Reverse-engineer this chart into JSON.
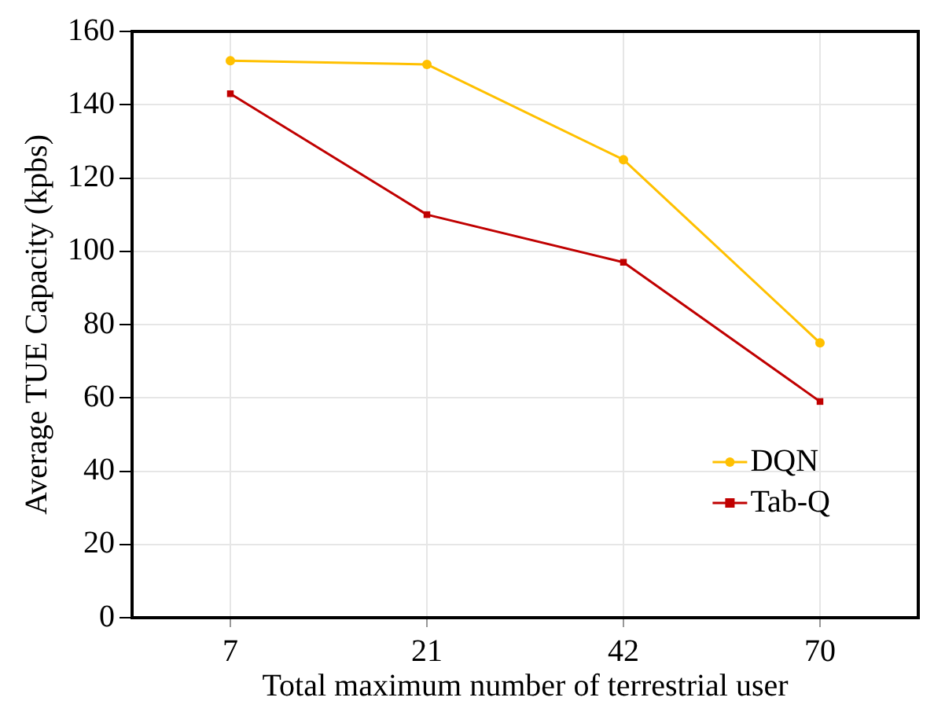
{
  "chart_data": {
    "type": "line",
    "xlabel": "Total maximum number of terrestrial user",
    "ylabel": "Average TUE Capacity (kpbs)",
    "categories": [
      "7",
      "21",
      "42",
      "70"
    ],
    "series": [
      {
        "name": "DQN",
        "color": "#ffc000",
        "marker": "circle",
        "values": [
          152,
          151,
          125,
          75
        ]
      },
      {
        "name": "Tab-Q",
        "color": "#c00000",
        "marker": "square",
        "values": [
          143,
          110,
          97,
          59
        ]
      }
    ],
    "ylim": [
      0,
      160
    ],
    "yticks": [
      0,
      20,
      40,
      60,
      80,
      100,
      120,
      140,
      160
    ],
    "grid": true,
    "legend": "bottom right"
  }
}
